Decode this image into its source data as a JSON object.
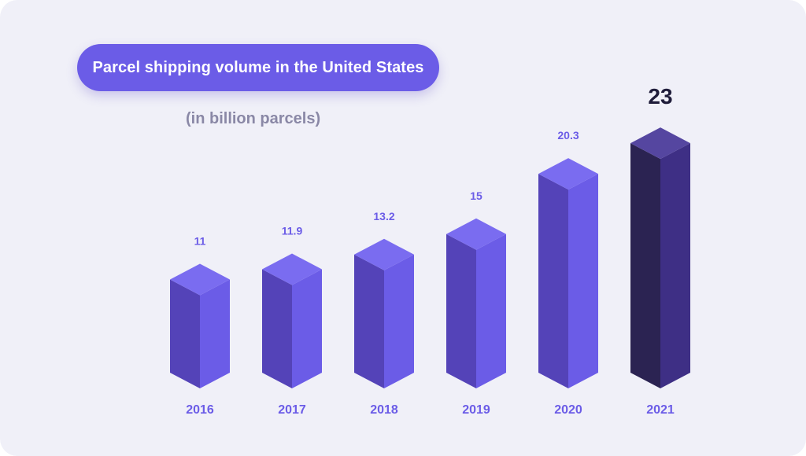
{
  "title": "Parcel shipping volume in the United States",
  "subtitle": "(in billion parcels)",
  "colors": {
    "background": "#f0f0f8",
    "bar_front": "#6b5ce7",
    "bar_side": "#5443b8",
    "bar_top": "#7a6cf0",
    "highlight_front": "#3e2f85",
    "highlight_side": "#2b2352",
    "highlight_top": "#5546a0",
    "label": "#6b5ce7",
    "highlight_label": "#1f1c3a",
    "title_pill": "#6b5ce7"
  },
  "chart_data": {
    "type": "bar",
    "title": "Parcel shipping volume in the United States",
    "subtitle": "(in billion parcels)",
    "categories": [
      "2016",
      "2017",
      "2018",
      "2019",
      "2020",
      "2021"
    ],
    "value_labels": [
      "11",
      "11.9",
      "13.2",
      "15",
      "20.3",
      "23"
    ],
    "values": [
      11,
      11.9,
      13.2,
      15,
      20.3,
      23
    ],
    "highlight_index": 5,
    "xlabel": "",
    "ylabel": "",
    "grid": false
  }
}
